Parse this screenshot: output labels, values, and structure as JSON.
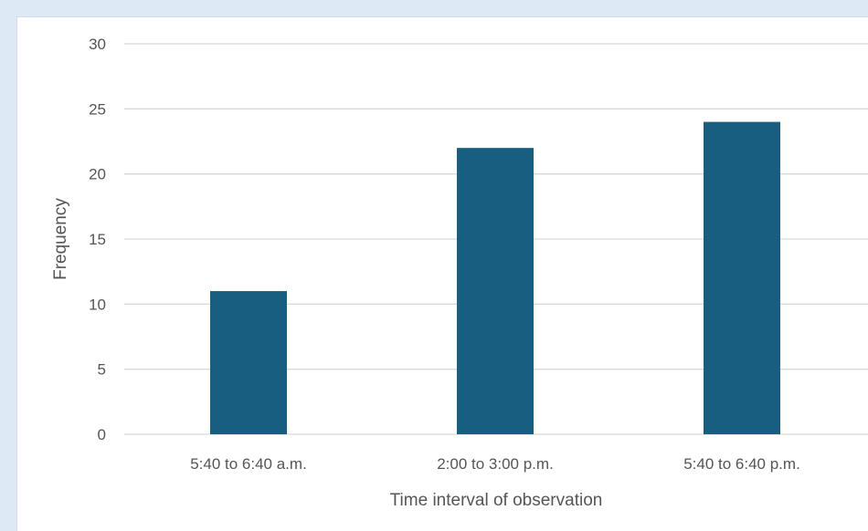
{
  "chart_data": {
    "type": "bar",
    "title": "",
    "categories": [
      "5:40 to 6:40 a.m.",
      "2:00 to 3:00 p.m.",
      "5:40 to 6:40 p.m."
    ],
    "values": [
      11,
      22,
      24
    ],
    "xlabel": "Time interval of observation",
    "ylabel": "Frequency",
    "ylim": [
      0,
      30
    ],
    "yticks": [
      0,
      5,
      10,
      15,
      20,
      25,
      30
    ],
    "grid": true,
    "legend": "none",
    "bar_color": "#175e80",
    "grid_color": "#d9d9d9"
  }
}
